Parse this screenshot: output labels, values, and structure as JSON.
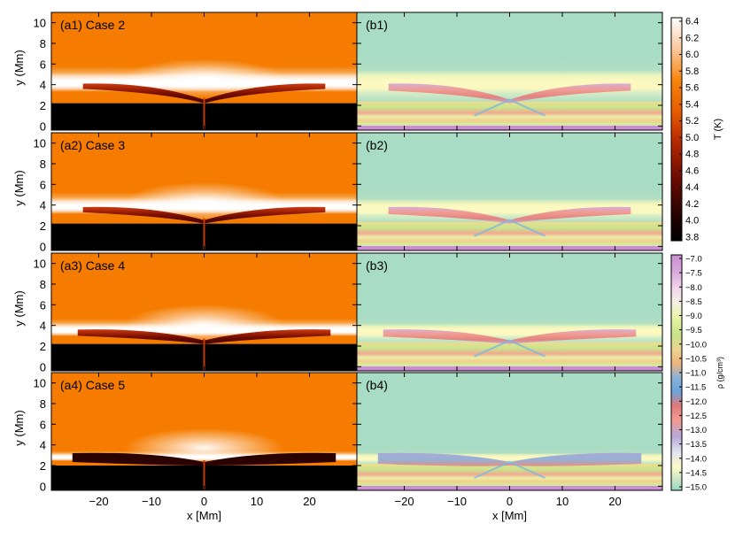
{
  "panels": {
    "left": [
      {
        "tag": "(a1) Case 2",
        "h_peak": 4.1,
        "h_base": 2.2,
        "flat_end": 23
      },
      {
        "tag": "(a2) Case 3",
        "h_peak": 3.8,
        "h_base": 2.2,
        "flat_end": 23
      },
      {
        "tag": "(a3) Case 4",
        "h_peak": 3.6,
        "h_base": 2.2,
        "flat_end": 24
      },
      {
        "tag": "(a4) Case 5",
        "h_peak": 3.2,
        "h_base": 2.0,
        "flat_end": 25
      }
    ],
    "right": [
      {
        "tag": "(b1)"
      },
      {
        "tag": "(b2)"
      },
      {
        "tag": "(b3)"
      },
      {
        "tag": "(b4)"
      }
    ]
  },
  "axes": {
    "x_label": "x [Mm]",
    "y_label": "y (Mm)",
    "x_range": [
      -29,
      29
    ],
    "y_range": [
      -0.4,
      11
    ],
    "x_ticks": [
      "-20",
      "-10",
      "0",
      "10",
      "20"
    ],
    "x_tick_values": [
      -20,
      -10,
      0,
      10,
      20
    ],
    "y_ticks": [
      "0",
      "2",
      "4",
      "6",
      "8",
      "10"
    ],
    "y_tick_values": [
      0,
      2,
      4,
      6,
      8,
      10
    ]
  },
  "colorbars": {
    "temperature": {
      "label": "T (K)",
      "ticks": [
        "6.4",
        "6.2",
        "6.0",
        "5.8",
        "5.6",
        "5.4",
        "5.2",
        "5.0",
        "4.8",
        "4.6",
        "4.4",
        "4.2",
        "4.0",
        "3.8"
      ],
      "colors": [
        "#000000",
        "#3a0400",
        "#8a1400",
        "#c83808",
        "#f57400",
        "#f89a4a",
        "#fbd6b0",
        "#ffffff"
      ]
    },
    "density": {
      "label": "ρ (g/cm³)",
      "ticks": [
        "-7.0",
        "-7.5",
        "-8.0",
        "-8.5",
        "-9.0",
        "-9.5",
        "-10.0",
        "-10.5",
        "-11.0",
        "-11.5",
        "-12.0",
        "-12.5",
        "-13.0",
        "-13.5",
        "-14.0",
        "-14.5",
        "-15.0"
      ],
      "colors": [
        "#ce9ad4",
        "#d9a8d8",
        "#f0d2ea",
        "#e4f2a6",
        "#c4e28a",
        "#f0d08a",
        "#ecc07c",
        "#70a8d8",
        "#e07070",
        "#f08a8a",
        "#b6a6d4",
        "#fffac4",
        "#b8e0c4",
        "#9cd8c4"
      ]
    }
  },
  "palette": {
    "corona_temp": "#f57c00",
    "corona_dens": "#a8dcc4",
    "chromo_temp": "#000000",
    "cool_core": "#8a1400",
    "hot_sheath": "#ffffff"
  }
}
